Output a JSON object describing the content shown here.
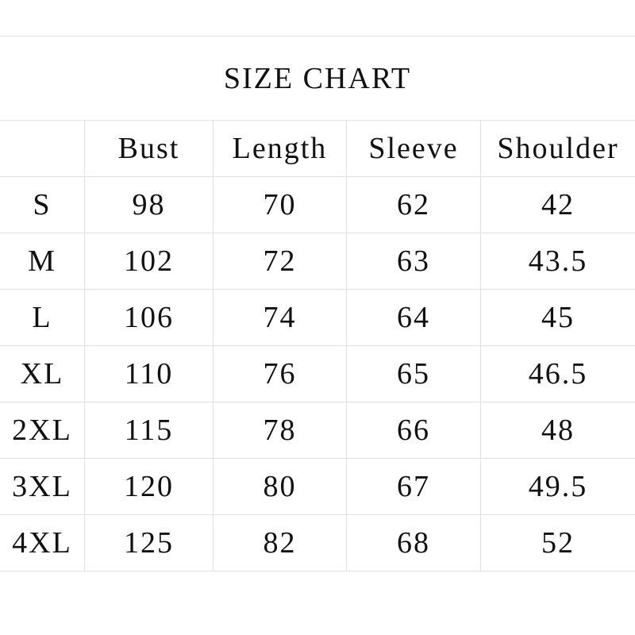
{
  "title": "SIZE CHART",
  "headers": [
    "",
    "Bust",
    "Length",
    "Sleeve",
    "Shoulder"
  ],
  "rows": [
    [
      "S",
      "98",
      "70",
      "62",
      "42"
    ],
    [
      "M",
      "102",
      "72",
      "63",
      "43.5"
    ],
    [
      "L",
      "106",
      "74",
      "64",
      "45"
    ],
    [
      "XL",
      "110",
      "76",
      "65",
      "46.5"
    ],
    [
      "2XL",
      "115",
      "78",
      "66",
      "48"
    ],
    [
      "3XL",
      "120",
      "80",
      "67",
      "49.5"
    ],
    [
      "4XL",
      "125",
      "82",
      "68",
      "52"
    ]
  ]
}
